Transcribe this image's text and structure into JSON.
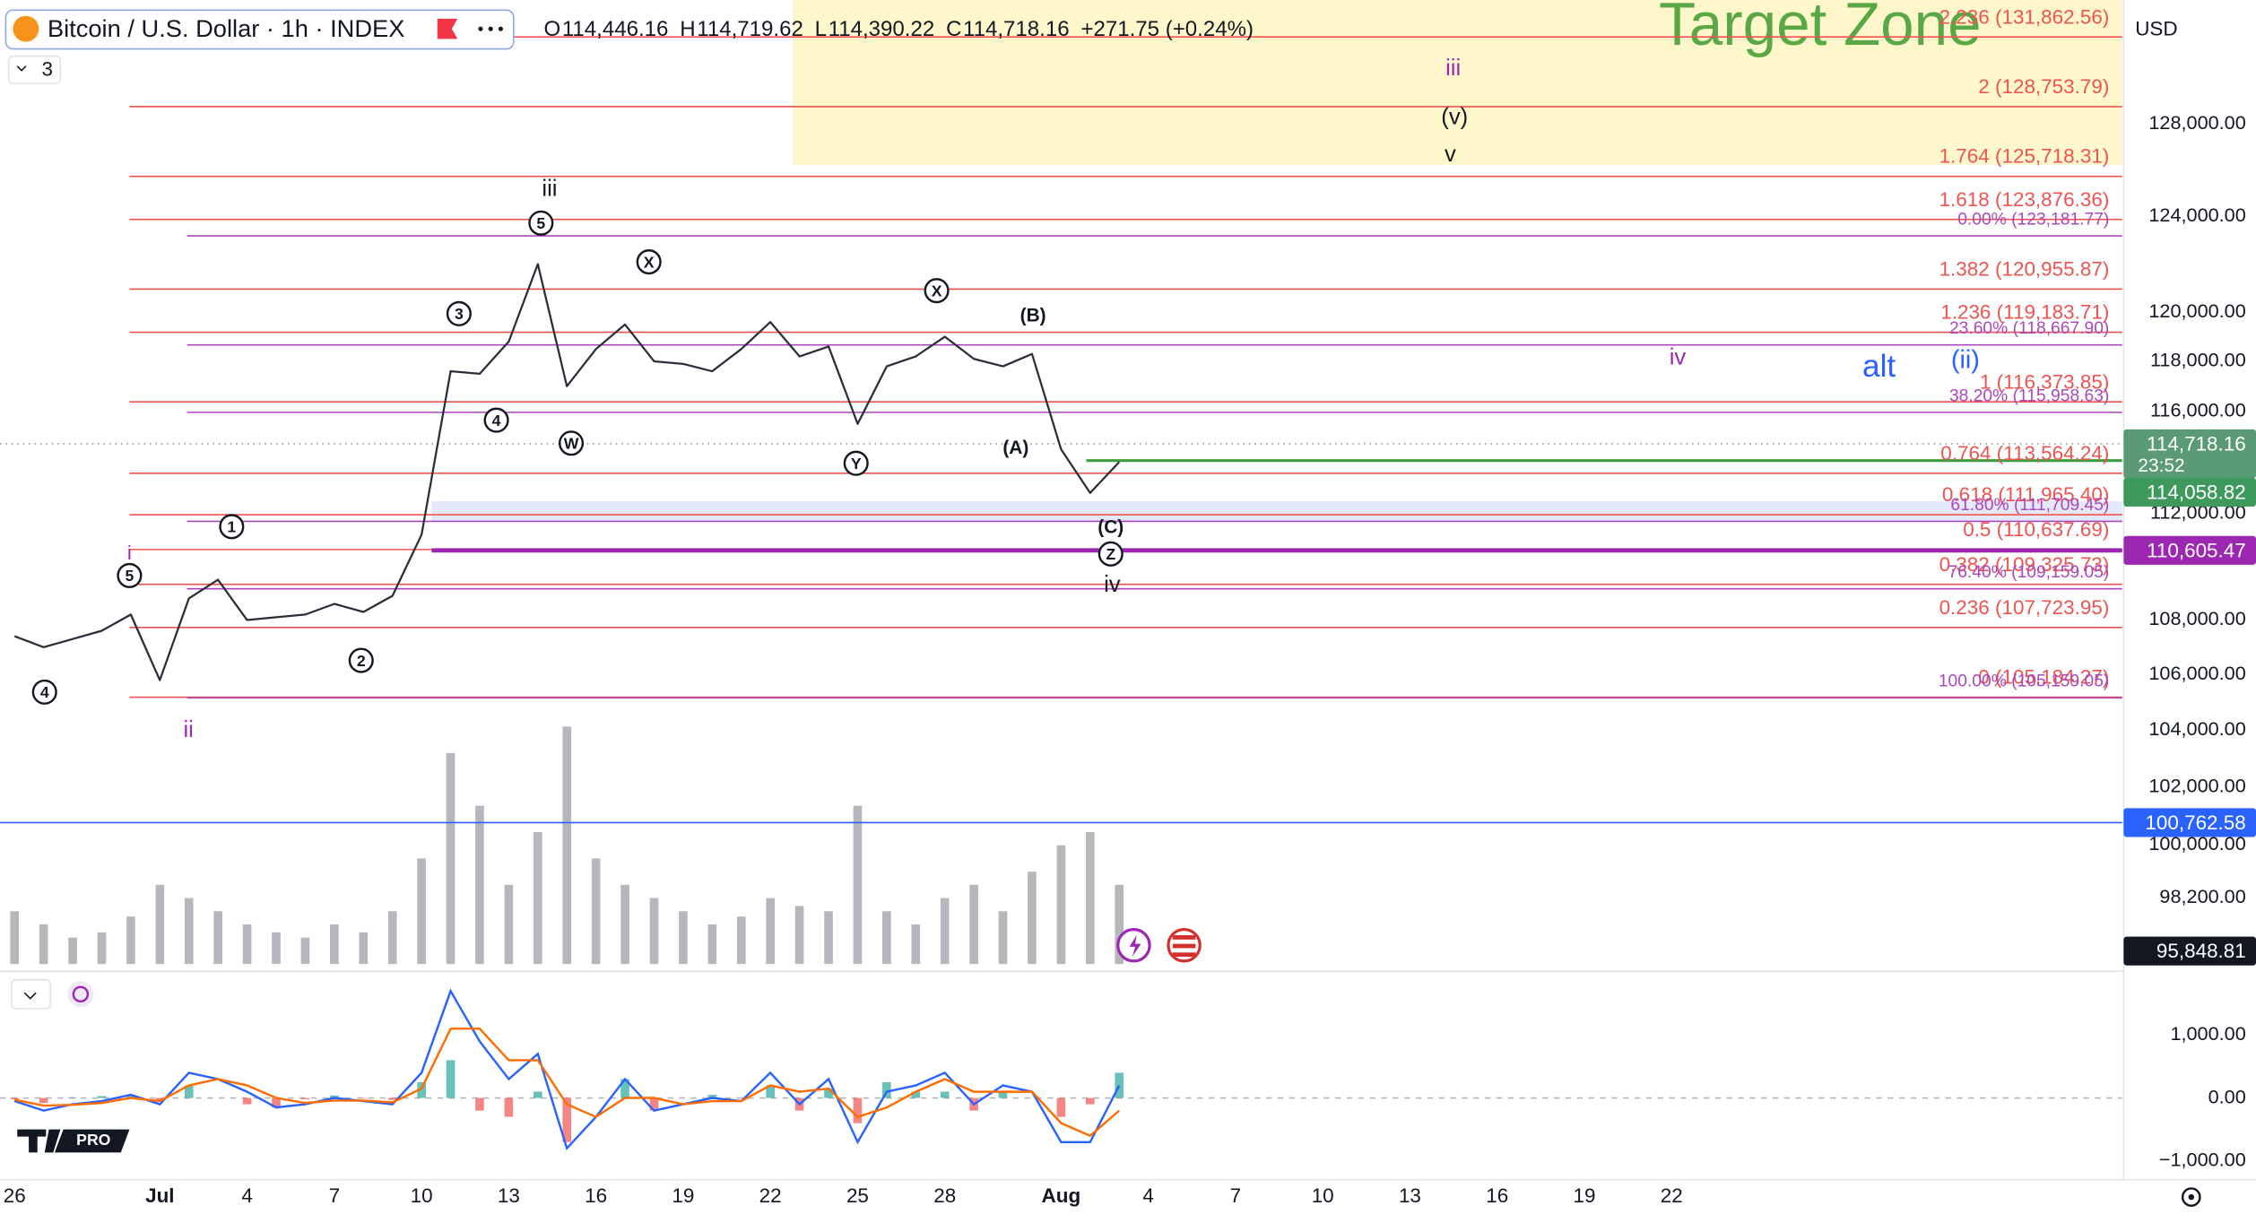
{
  "header": {
    "title": "Bitcoin / U.S. Dollar · 1h · INDEX",
    "indicators": "3",
    "currency": "USD",
    "ohlc": [
      {
        "key": "O",
        "value": "114,446.16"
      },
      {
        "key": "H",
        "value": "114,719.62"
      },
      {
        "key": "L",
        "value": "114,390.22"
      },
      {
        "key": "C",
        "value": "114,718.16"
      }
    ],
    "change": "+271.75 (+0.24%)",
    "logo": "PRO"
  },
  "chart_data": {
    "type": "line",
    "log_scale": true,
    "grid": false,
    "color": "#2a2e39",
    "ylim": [
      96000,
      133540
    ],
    "yticks": [
      {
        "value": 128000,
        "label": "128,000.00"
      },
      {
        "value": 124000,
        "label": "124,000.00"
      },
      {
        "value": 120000,
        "label": "120,000.00"
      },
      {
        "value": 118000,
        "label": "118,000.00"
      },
      {
        "value": 116000,
        "label": "116,000.00"
      },
      {
        "value": 112000,
        "label": "112,000.00"
      },
      {
        "value": 108000,
        "label": "108,000.00"
      },
      {
        "value": 106000,
        "label": "106,000.00"
      },
      {
        "value": 104000,
        "label": "104,000.00"
      },
      {
        "value": 102000,
        "label": "102,000.00"
      },
      {
        "value": 100000,
        "label": "100,000.00"
      },
      {
        "value": 98200,
        "label": "98,200.00"
      }
    ],
    "categories": [
      "26",
      null,
      null,
      null,
      null,
      "Jul",
      null,
      null,
      "4",
      null,
      null,
      "7",
      null,
      null,
      "10",
      null,
      null,
      "13",
      null,
      null,
      "16",
      null,
      null,
      "19",
      null,
      null,
      "22",
      null,
      null,
      "25",
      null,
      null,
      "28",
      null,
      null,
      null,
      "Aug",
      null,
      null,
      "4",
      null,
      null,
      "7",
      null,
      null,
      "10",
      null,
      null,
      "13",
      null,
      null,
      "16",
      null,
      null,
      "19",
      null,
      null,
      "22",
      null,
      null,
      null,
      null,
      null,
      null,
      null,
      null,
      null,
      null,
      null,
      null,
      null,
      null,
      null
    ],
    "values": [
      107400,
      107000,
      107300,
      107600,
      108200,
      105800,
      108800,
      109500,
      108000,
      108100,
      108200,
      108600,
      108300,
      108900,
      111200,
      117600,
      117500,
      118800,
      122000,
      117000,
      118500,
      119500,
      118000,
      117900,
      117600,
      118500,
      119600,
      118200,
      118600,
      115500,
      117800,
      118200,
      119000,
      118100,
      117800,
      118300,
      114500,
      112800,
      114000,
      null,
      null,
      null,
      null,
      null,
      null,
      null,
      null,
      null,
      null,
      null,
      null,
      null,
      null,
      null,
      null,
      null,
      null,
      null,
      null,
      null,
      null,
      null,
      null,
      null,
      null,
      null,
      null,
      null,
      null,
      null,
      null,
      null,
      null
    ],
    "volume": {
      "color": "#9598a1",
      "values": [
        20,
        15,
        10,
        12,
        18,
        30,
        25,
        20,
        15,
        12,
        10,
        15,
        12,
        20,
        40,
        80,
        60,
        30,
        50,
        90,
        40,
        30,
        25,
        20,
        15,
        18,
        25,
        22,
        20,
        60,
        20,
        15,
        25,
        30,
        20,
        35,
        45,
        50,
        30,
        null,
        null,
        null,
        null,
        null,
        null,
        null,
        null,
        null,
        null,
        null,
        null,
        null,
        null,
        null,
        null,
        null,
        null,
        null,
        null,
        null,
        null,
        null,
        null,
        null,
        null,
        null,
        null,
        null,
        null,
        null,
        null,
        null,
        null
      ]
    },
    "macd": {
      "ylim": [
        -1300,
        1900
      ],
      "yticks": [
        {
          "value": 1000,
          "label": "1,000.00"
        },
        {
          "value": 0,
          "label": "0.00"
        },
        {
          "value": -1000,
          "label": "−1,000.00"
        }
      ],
      "colors": {
        "macd": "#2962ff",
        "signal": "#ff6d00",
        "hist_up": "#26a69a",
        "hist_down": "#ef5350"
      },
      "macd": [
        -50,
        -200,
        -100,
        -50,
        50,
        -100,
        400,
        300,
        100,
        -150,
        -100,
        0,
        -50,
        -100,
        400,
        1700,
        900,
        300,
        700,
        -800,
        -300,
        300,
        -200,
        -100,
        0,
        -50,
        400,
        -100,
        300,
        -700,
        100,
        200,
        400,
        -100,
        200,
        100,
        -700,
        -700,
        200,
        null,
        null,
        null,
        null,
        null,
        null,
        null,
        null,
        null,
        null,
        null,
        null,
        null,
        null,
        null,
        null,
        null,
        null,
        null,
        null,
        null,
        null,
        null,
        null,
        null,
        null,
        null,
        null,
        null,
        null,
        null,
        null,
        null,
        null
      ],
      "signal": [
        -30,
        -120,
        -110,
        -80,
        0,
        -50,
        200,
        300,
        200,
        0,
        -80,
        -40,
        -40,
        -70,
        150,
        1100,
        1100,
        600,
        600,
        -100,
        -300,
        0,
        0,
        -100,
        -50,
        -50,
        200,
        100,
        150,
        -300,
        -150,
        100,
        300,
        100,
        100,
        100,
        -400,
        -600,
        -200,
        null,
        null,
        null,
        null,
        null,
        null,
        null,
        null,
        null,
        null,
        null,
        null,
        null,
        null,
        null,
        null,
        null,
        null,
        null,
        null,
        null,
        null,
        null,
        null,
        null,
        null,
        null,
        null,
        null,
        null,
        null,
        null,
        null,
        null
      ],
      "histogram": [
        -20,
        -80,
        10,
        30,
        50,
        -50,
        200,
        0,
        -100,
        -150,
        -20,
        40,
        -10,
        -30,
        250,
        600,
        -200,
        -300,
        100,
        -700,
        0,
        300,
        -200,
        0,
        50,
        0,
        200,
        -200,
        150,
        -400,
        250,
        100,
        100,
        -200,
        100,
        0,
        -300,
        -100,
        400,
        null,
        null,
        null,
        null,
        null,
        null,
        null,
        null,
        null,
        null,
        null,
        null,
        null,
        null,
        null,
        null,
        null,
        null,
        null,
        null,
        null,
        null,
        null,
        null,
        null,
        null,
        null,
        null,
        null,
        null,
        null,
        null,
        null,
        null
      ]
    },
    "fib_extensions": {
      "color": "#ef5350",
      "levels": [
        {
          "value": 131862.56,
          "label": "2.236 (131,862.56)"
        },
        {
          "value": 128753.79,
          "label": "2 (128,753.79)"
        },
        {
          "value": 125718.31,
          "label": "1.764 (125,718.31)"
        },
        {
          "value": 123876.36,
          "label": "1.618 (123,876.36)"
        },
        {
          "value": 120955.87,
          "label": "1.382 (120,955.87)"
        },
        {
          "value": 119183.71,
          "label": "1.236 (119,183.71)"
        },
        {
          "value": 116373.85,
          "label": "1 (116,373.85)"
        },
        {
          "value": 113564.24,
          "label": "0.764 (113,564.24)"
        },
        {
          "value": 111965.4,
          "label": "0.618 (111,965.40)"
        },
        {
          "value": 110637.69,
          "label": "0.5 (110,637.69)"
        },
        {
          "value": 109325.73,
          "label": "0.382 (109,325.73)"
        },
        {
          "value": 107723.95,
          "label": "0.236 (107,723.95)"
        },
        {
          "value": 105184.27,
          "label": "0 (105,184.27)"
        }
      ]
    },
    "fib_retracements": {
      "color": "#ab47bc",
      "levels": [
        {
          "value": 123181.77,
          "label": "0.00% (123,181.77)"
        },
        {
          "value": 118667.9,
          "label": "23.60% (118,667.90)"
        },
        {
          "value": 115958.63,
          "label": "38.20% (115,958.63)"
        },
        {
          "value": 111709.45,
          "label": "61.80% (111,709.45)"
        },
        {
          "value": 109159.05,
          "label": "76.40% (109,159.05)"
        },
        {
          "value": 105159.05,
          "label": "100.00% (105,159.05)"
        }
      ]
    },
    "target_zone": {
      "label": "Target Zone",
      "color": "#5aa845",
      "fill": "#fff7cc"
    },
    "price_labels": [
      {
        "value": 114718.16,
        "label": "114,718.16",
        "countdown": "23:52",
        "color": "#5a9a74"
      },
      {
        "value": 114058.82,
        "label": "114,058.82",
        "color": "#3d9a5c"
      },
      {
        "value": 110605.47,
        "label": "110,605.47",
        "color": "#9c27b0"
      },
      {
        "value": 100762.58,
        "label": "100,762.58",
        "color": "#2962ff"
      },
      {
        "value": 95848.81,
        "label": "95,848.81",
        "color": "#131722"
      }
    ],
    "annotations": [
      {
        "text": "iii",
        "color": "#9c27b0",
        "circled": false
      },
      {
        "text": "(v)",
        "color": "#131722",
        "circled": false
      },
      {
        "text": "v",
        "color": "#131722",
        "circled": false
      },
      {
        "text": "iii",
        "color": "#131722",
        "circled": false
      },
      {
        "text": "5",
        "color": "#131722",
        "circled": true
      },
      {
        "text": "X",
        "color": "#131722",
        "circled": true
      },
      {
        "text": "3",
        "color": "#131722",
        "circled": true
      },
      {
        "text": "X",
        "color": "#131722",
        "circled": true
      },
      {
        "text": "(B)",
        "color": "#131722",
        "circled": false
      },
      {
        "text": "iv",
        "color": "#9c27b0",
        "circled": false
      },
      {
        "text": "alt",
        "color": "#2962ff",
        "circled": false
      },
      {
        "text": "(ii)",
        "color": "#2962ff",
        "circled": false
      },
      {
        "text": "4",
        "color": "#131722",
        "circled": true
      },
      {
        "text": "W",
        "color": "#131722",
        "circled": true
      },
      {
        "text": "Y",
        "color": "#131722",
        "circled": true
      },
      {
        "text": "(A)",
        "color": "#131722",
        "circled": false
      },
      {
        "text": "(C)",
        "color": "#131722",
        "circled": false
      },
      {
        "text": "Z",
        "color": "#131722",
        "circled": true
      },
      {
        "text": "iv",
        "color": "#131722",
        "circled": false
      },
      {
        "text": "1",
        "color": "#131722",
        "circled": true
      },
      {
        "text": "i",
        "color": "#9c27b0",
        "circled": false
      },
      {
        "text": "5",
        "color": "#131722",
        "circled": true
      },
      {
        "text": "2",
        "color": "#131722",
        "circled": true
      },
      {
        "text": "4",
        "color": "#131722",
        "circled": true
      },
      {
        "text": "ii",
        "color": "#9c27b0",
        "circled": false
      }
    ]
  }
}
